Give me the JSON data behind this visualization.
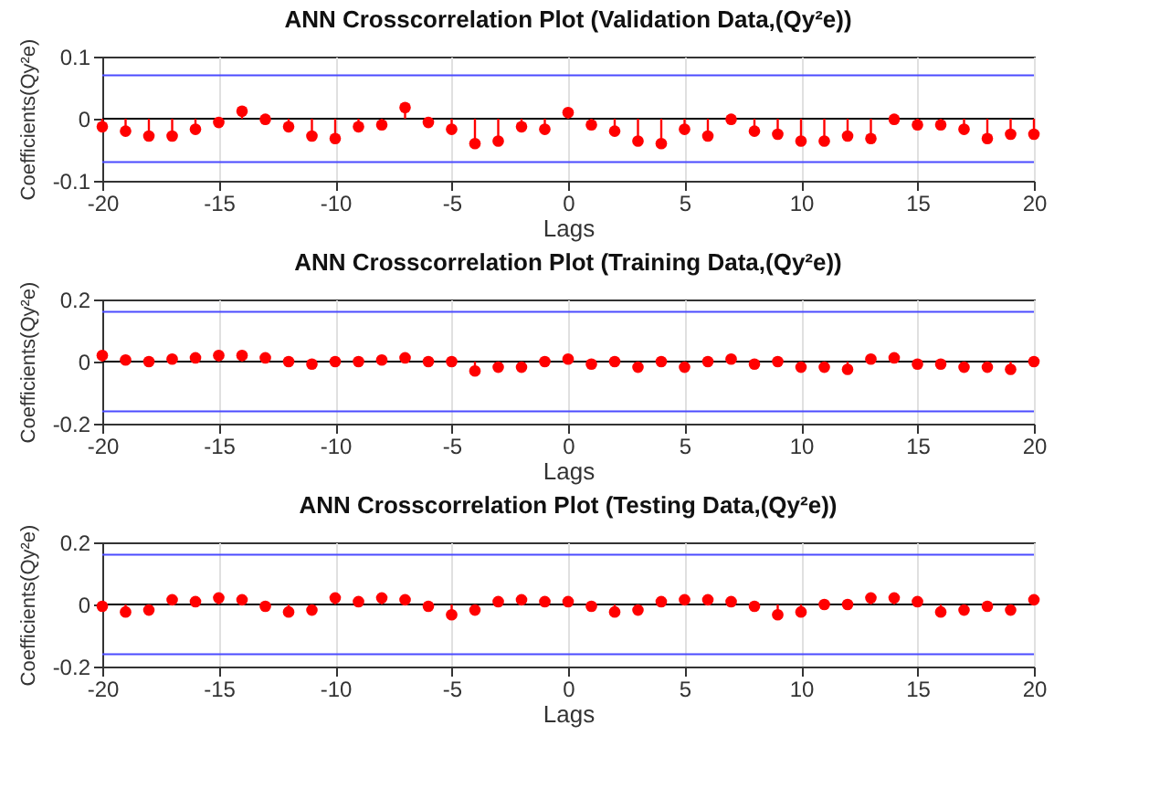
{
  "chart_data": [
    {
      "type": "lollipop",
      "title": "ANN Crosscorrelation Plot (Validation Data,(Qy²e))",
      "xlabel": "Lags",
      "ylabel": "Coefficients(Qy²e)",
      "x": [
        -20,
        -19,
        -18,
        -17,
        -16,
        -15,
        -14,
        -13,
        -12,
        -11,
        -10,
        -9,
        -8,
        -7,
        -6,
        -5,
        -4,
        -3,
        -2,
        -1,
        0,
        1,
        2,
        3,
        4,
        5,
        6,
        7,
        8,
        9,
        10,
        11,
        12,
        13,
        14,
        15,
        16,
        17,
        18,
        19,
        20
      ],
      "series": [
        {
          "color": "#ff0000",
          "values": [
            -0.013,
            -0.02,
            -0.028,
            -0.028,
            -0.017,
            -0.006,
            0.012,
            -0.001,
            -0.013,
            -0.028,
            -0.032,
            -0.013,
            -0.01,
            0.018,
            -0.006,
            -0.017,
            -0.04,
            -0.036,
            -0.013,
            -0.017,
            0.01,
            -0.01,
            -0.02,
            -0.036,
            -0.04,
            -0.017,
            -0.028,
            -0.001,
            -0.02,
            -0.025,
            -0.036,
            -0.036,
            -0.028,
            -0.032,
            -0.001,
            -0.01,
            -0.01,
            -0.017,
            -0.032,
            -0.025,
            -0.025
          ]
        }
      ],
      "xlim": [
        -20,
        20
      ],
      "xticks": [
        -20,
        -15,
        -10,
        -5,
        0,
        5,
        10,
        15,
        20
      ],
      "ylim": [
        -0.1,
        0.1
      ],
      "yticks": [
        -0.1,
        0,
        0.1
      ],
      "grid": "x",
      "marker": "circle",
      "ref_lines": [
        {
          "axis": "y",
          "value": 0.07,
          "color": "#4b4bff"
        },
        {
          "axis": "y",
          "value": -0.07,
          "color": "#4b4bff"
        },
        {
          "axis": "y",
          "value": 0,
          "color": "#000000"
        }
      ]
    },
    {
      "type": "lollipop",
      "title": "ANN Crosscorrelation Plot (Training Data,(Qy²e))",
      "xlabel": "Lags",
      "ylabel": "Coefficients(Qy²e)",
      "x": [
        -20,
        -19,
        -18,
        -17,
        -16,
        -15,
        -14,
        -13,
        -12,
        -11,
        -10,
        -9,
        -8,
        -7,
        -6,
        -5,
        -4,
        -3,
        -2,
        -1,
        0,
        1,
        2,
        3,
        4,
        5,
        6,
        7,
        8,
        9,
        10,
        11,
        12,
        13,
        14,
        15,
        16,
        17,
        18,
        19,
        20
      ],
      "series": [
        {
          "color": "#ff0000",
          "values": [
            0.02,
            0.005,
            0,
            0.008,
            0.012,
            0.02,
            0.02,
            0.012,
            0,
            -0.008,
            0,
            0,
            0.005,
            0.012,
            0,
            0,
            -0.03,
            -0.018,
            -0.018,
            0,
            0.008,
            -0.008,
            0,
            -0.018,
            0,
            -0.018,
            0,
            0.008,
            -0.008,
            0,
            -0.018,
            -0.018,
            -0.025,
            0.008,
            0.012,
            -0.008,
            -0.008,
            -0.018,
            -0.018,
            -0.025,
            0
          ]
        }
      ],
      "xlim": [
        -20,
        20
      ],
      "xticks": [
        -20,
        -15,
        -10,
        -5,
        0,
        5,
        10,
        15,
        20
      ],
      "ylim": [
        -0.2,
        0.2
      ],
      "yticks": [
        -0.2,
        0,
        0.2
      ],
      "grid": "x",
      "marker": "circle",
      "ref_lines": [
        {
          "axis": "y",
          "value": 0.16,
          "color": "#4b4bff"
        },
        {
          "axis": "y",
          "value": -0.16,
          "color": "#4b4bff"
        },
        {
          "axis": "y",
          "value": 0,
          "color": "#000000"
        }
      ]
    },
    {
      "type": "lollipop",
      "title": "ANN Crosscorrelation Plot (Testing Data,(Qy²e))",
      "xlabel": "Lags",
      "ylabel": "Coefficients(Qy²e)",
      "x": [
        -20,
        -19,
        -18,
        -17,
        -16,
        -15,
        -14,
        -13,
        -12,
        -11,
        -10,
        -9,
        -8,
        -7,
        -6,
        -5,
        -4,
        -3,
        -2,
        -1,
        0,
        1,
        2,
        3,
        4,
        5,
        6,
        7,
        8,
        9,
        10,
        11,
        12,
        13,
        14,
        15,
        16,
        17,
        18,
        19,
        20
      ],
      "series": [
        {
          "color": "#ff0000",
          "values": [
            -0.006,
            -0.024,
            -0.018,
            0.015,
            0.009,
            0.021,
            0.015,
            -0.006,
            -0.024,
            -0.018,
            0.021,
            0.009,
            0.021,
            0.015,
            -0.006,
            -0.033,
            -0.018,
            0.009,
            0.015,
            0.009,
            0.009,
            -0.006,
            -0.024,
            -0.018,
            0.009,
            0.015,
            0.015,
            0.009,
            -0.006,
            -0.033,
            -0.024,
            0,
            0,
            0.021,
            0.021,
            0.009,
            -0.024,
            -0.018,
            -0.006,
            -0.018,
            0.015
          ]
        }
      ],
      "xlim": [
        -20,
        20
      ],
      "xticks": [
        -20,
        -15,
        -10,
        -5,
        0,
        5,
        10,
        15,
        20
      ],
      "ylim": [
        -0.2,
        0.2
      ],
      "yticks": [
        -0.2,
        0,
        0.2
      ],
      "grid": "x",
      "marker": "circle",
      "ref_lines": [
        {
          "axis": "y",
          "value": 0.16,
          "color": "#4b4bff"
        },
        {
          "axis": "y",
          "value": -0.16,
          "color": "#4b4bff"
        },
        {
          "axis": "y",
          "value": 0,
          "color": "#000000"
        }
      ]
    }
  ]
}
